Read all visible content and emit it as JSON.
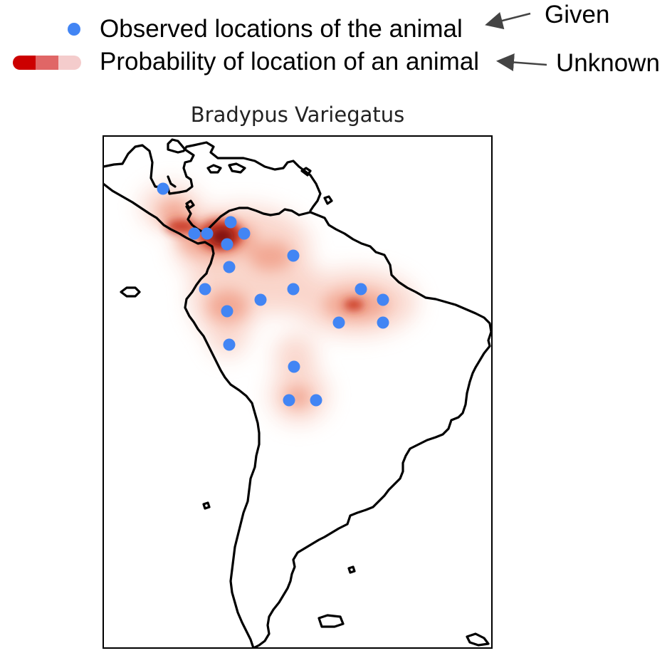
{
  "legend": {
    "observed_label": "Observed locations of the animal",
    "probability_label": "Probability of location of an animal",
    "given_tag": "Given",
    "unknown_tag": "Unknown"
  },
  "map": {
    "title": "Bradypus Variegatus",
    "colors": {
      "observation_dot": "#4285f4",
      "density_dark": "#cc0000",
      "density_mid": "#e06666",
      "density_light": "#f4cccc",
      "coastline": "#000000",
      "frame": "#000000"
    },
    "density_scale": [
      "#cc0000",
      "#e06666",
      "#f4cccc"
    ]
  }
}
